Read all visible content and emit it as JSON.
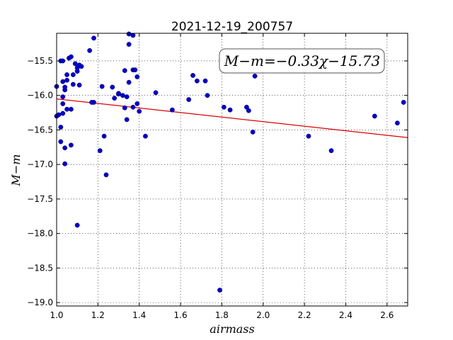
{
  "chart_data": {
    "type": "scatter",
    "title": "2021-12-19_200757",
    "xlabel": "airmass",
    "ylabel": "M−m",
    "xlim": [
      1.0,
      2.7
    ],
    "ylim": [
      -19.05,
      -15.1
    ],
    "y_inverted": true,
    "xticks": [
      "1.0",
      "1.2",
      "1.4",
      "1.6",
      "1.8",
      "2.0",
      "2.2",
      "2.4",
      "2.6"
    ],
    "yticks": [
      "−15.5",
      "−16.0",
      "−16.5",
      "−17.0",
      "−17.5",
      "−18.0",
      "−18.5",
      "−19.0"
    ],
    "grid": true,
    "annotation": "M−m=−0.33χ−15.73",
    "fit": {
      "slope": -0.33,
      "intercept": -15.73,
      "color": "#dd0000"
    },
    "point_color": "#0000cc",
    "points": [
      [
        1.0,
        -15.87
      ],
      [
        1.0,
        -16.3
      ],
      [
        1.01,
        -16.28
      ],
      [
        1.02,
        -16.46
      ],
      [
        1.02,
        -16.67
      ],
      [
        1.02,
        -15.5
      ],
      [
        1.03,
        -15.5
      ],
      [
        1.03,
        -15.8
      ],
      [
        1.03,
        -16.02
      ],
      [
        1.03,
        -16.12
      ],
      [
        1.03,
        -16.26
      ],
      [
        1.04,
        -15.92
      ],
      [
        1.04,
        -15.88
      ],
      [
        1.04,
        -16.76
      ],
      [
        1.04,
        -16.99
      ],
      [
        1.05,
        -15.78
      ],
      [
        1.05,
        -15.7
      ],
      [
        1.05,
        -16.2
      ],
      [
        1.06,
        -15.46
      ],
      [
        1.07,
        -15.44
      ],
      [
        1.07,
        -16.2
      ],
      [
        1.07,
        -16.72
      ],
      [
        1.08,
        -15.7
      ],
      [
        1.08,
        -15.84
      ],
      [
        1.09,
        -15.54
      ],
      [
        1.1,
        -15.65
      ],
      [
        1.1,
        -15.6
      ],
      [
        1.1,
        -17.88
      ],
      [
        1.11,
        -15.56
      ],
      [
        1.11,
        -15.85
      ],
      [
        1.12,
        -15.58
      ],
      [
        1.16,
        -15.35
      ],
      [
        1.17,
        -16.1
      ],
      [
        1.18,
        -16.1
      ],
      [
        1.18,
        -15.17
      ],
      [
        1.21,
        -16.8
      ],
      [
        1.22,
        -15.87
      ],
      [
        1.23,
        -16.59
      ],
      [
        1.24,
        -17.15
      ],
      [
        1.27,
        -15.88
      ],
      [
        1.28,
        -16.04
      ],
      [
        1.3,
        -15.98
      ],
      [
        1.3,
        -15.97
      ],
      [
        1.32,
        -16.0
      ],
      [
        1.33,
        -16.18
      ],
      [
        1.33,
        -15.64
      ],
      [
        1.34,
        -16.35
      ],
      [
        1.34,
        -16.02
      ],
      [
        1.35,
        -15.11
      ],
      [
        1.35,
        -15.26
      ],
      [
        1.35,
        -15.81
      ],
      [
        1.37,
        -15.63
      ],
      [
        1.37,
        -16.17
      ],
      [
        1.37,
        -15.13
      ],
      [
        1.38,
        -15.63
      ],
      [
        1.39,
        -16.12
      ],
      [
        1.39,
        -15.73
      ],
      [
        1.4,
        -16.23
      ],
      [
        1.43,
        -16.59
      ],
      [
        1.48,
        -15.96
      ],
      [
        1.56,
        -16.21
      ],
      [
        1.64,
        -16.06
      ],
      [
        1.66,
        -15.71
      ],
      [
        1.68,
        -15.79
      ],
      [
        1.72,
        -15.79
      ],
      [
        1.73,
        -16.0
      ],
      [
        1.79,
        -18.82
      ],
      [
        1.81,
        -16.17
      ],
      [
        1.84,
        -16.21
      ],
      [
        1.92,
        -16.17
      ],
      [
        1.93,
        -16.22
      ],
      [
        1.95,
        -16.53
      ],
      [
        1.96,
        -15.72
      ],
      [
        2.22,
        -16.59
      ],
      [
        2.33,
        -16.8
      ],
      [
        2.54,
        -16.3
      ],
      [
        2.65,
        -16.4
      ],
      [
        2.68,
        -16.1
      ]
    ]
  }
}
